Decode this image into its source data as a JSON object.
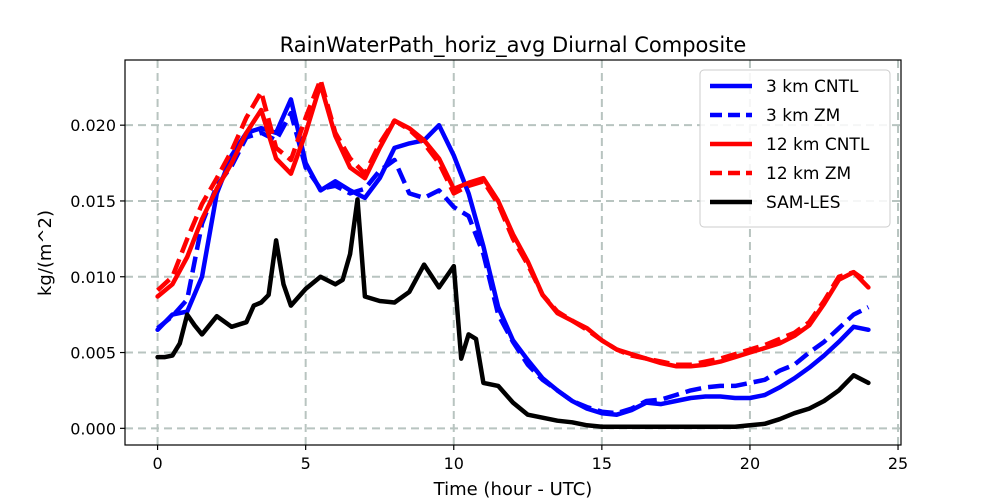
{
  "chart_data": {
    "type": "line",
    "title": "RainWaterPath_horiz_avg Diurnal Composite",
    "xlabel": "Time (hour - UTC)",
    "ylabel": "kg/(m^2)",
    "xlim": [
      -1.1,
      25.1
    ],
    "ylim": [
      -0.0011,
      0.0243
    ],
    "xticks": [
      0,
      5,
      10,
      15,
      20,
      25
    ],
    "xtick_labels": [
      "0",
      "5",
      "10",
      "15",
      "20",
      "25"
    ],
    "yticks": [
      0,
      0.005,
      0.01,
      0.015,
      0.02
    ],
    "ytick_labels": [
      "0.000",
      "0.005",
      "0.010",
      "0.015",
      "0.020"
    ],
    "grid": true,
    "legend_position": "top-right",
    "series": [
      {
        "name": "3 km CNTL",
        "color": "#0000ff",
        "style": "solid",
        "x": [
          0,
          0.5,
          1,
          1.5,
          2,
          2.5,
          3,
          3.5,
          4,
          4.5,
          5,
          5.5,
          6,
          6.5,
          7,
          7.5,
          8,
          8.5,
          9,
          9.5,
          10,
          10.5,
          11,
          11.5,
          12,
          12.5,
          13,
          13.5,
          14,
          14.5,
          15,
          15.5,
          16,
          16.5,
          17,
          17.5,
          18,
          18.5,
          19,
          19.5,
          20,
          20.5,
          21,
          21.5,
          22,
          22.5,
          23,
          23.5,
          24
        ],
        "y": [
          0.0065,
          0.0075,
          0.0077,
          0.01,
          0.0155,
          0.018,
          0.0195,
          0.0198,
          0.0195,
          0.0217,
          0.0175,
          0.0157,
          0.0163,
          0.0157,
          0.0152,
          0.0165,
          0.0185,
          0.0188,
          0.019,
          0.02,
          0.018,
          0.0155,
          0.012,
          0.008,
          0.0058,
          0.0045,
          0.0033,
          0.0025,
          0.0018,
          0.0013,
          0.001,
          0.0009,
          0.0012,
          0.0017,
          0.0016,
          0.0018,
          0.002,
          0.0021,
          0.0021,
          0.002,
          0.002,
          0.0022,
          0.0027,
          0.0033,
          0.004,
          0.0048,
          0.0057,
          0.0067,
          0.0065
        ]
      },
      {
        "name": "3 km ZM",
        "color": "#0000ff",
        "style": "dashed",
        "x": [
          0,
          0.5,
          1,
          1.5,
          2,
          2.5,
          3,
          3.5,
          4,
          4.5,
          5,
          5.5,
          6,
          6.5,
          7,
          7.5,
          8,
          8.5,
          9,
          9.5,
          10,
          10.5,
          11,
          11.5,
          12,
          12.5,
          13,
          13.5,
          14,
          14.5,
          15,
          15.5,
          16,
          16.5,
          17,
          17.5,
          18,
          18.5,
          19,
          19.5,
          20,
          20.5,
          21,
          21.5,
          22,
          22.5,
          23,
          23.5,
          24
        ],
        "y": [
          0.0066,
          0.0074,
          0.0085,
          0.0135,
          0.016,
          0.0173,
          0.0192,
          0.0195,
          0.019,
          0.0208,
          0.0172,
          0.0158,
          0.016,
          0.0155,
          0.0158,
          0.017,
          0.0177,
          0.0155,
          0.0152,
          0.0157,
          0.0146,
          0.014,
          0.0115,
          0.0075,
          0.0057,
          0.0042,
          0.0032,
          0.0025,
          0.0018,
          0.0014,
          0.0011,
          0.001,
          0.0013,
          0.0018,
          0.0019,
          0.0022,
          0.0025,
          0.0027,
          0.0028,
          0.0028,
          0.003,
          0.0032,
          0.0038,
          0.0042,
          0.005,
          0.0057,
          0.0066,
          0.0075,
          0.008
        ]
      },
      {
        "name": "12 km CNTL",
        "color": "#ff0000",
        "style": "solid",
        "x": [
          0,
          0.5,
          1,
          1.5,
          2,
          2.5,
          3,
          3.5,
          4,
          4.5,
          5,
          5.5,
          6,
          6.5,
          7,
          7.5,
          8,
          8.5,
          9,
          9.5,
          10,
          10.5,
          11,
          11.5,
          12,
          12.5,
          13,
          13.5,
          14,
          14.5,
          15,
          15.5,
          16,
          16.5,
          17,
          17.5,
          18,
          18.5,
          19,
          19.5,
          20,
          20.5,
          21,
          21.5,
          22,
          22.5,
          23,
          23.5,
          24
        ],
        "y": [
          0.0087,
          0.0095,
          0.0113,
          0.0138,
          0.0158,
          0.0175,
          0.0195,
          0.021,
          0.0178,
          0.0168,
          0.0195,
          0.0227,
          0.0193,
          0.0172,
          0.0165,
          0.0185,
          0.0203,
          0.0198,
          0.019,
          0.0178,
          0.0158,
          0.0162,
          0.0165,
          0.015,
          0.0128,
          0.011,
          0.0088,
          0.0076,
          0.0071,
          0.0066,
          0.0058,
          0.0052,
          0.0049,
          0.0046,
          0.0043,
          0.0041,
          0.0041,
          0.0042,
          0.0044,
          0.0047,
          0.005,
          0.0053,
          0.0056,
          0.0061,
          0.0068,
          0.0082,
          0.0098,
          0.0103,
          0.0093
        ]
      },
      {
        "name": "12 km ZM",
        "color": "#ff0000",
        "style": "dashed",
        "x": [
          0,
          0.5,
          1,
          1.5,
          2,
          2.5,
          3,
          3.5,
          4,
          4.5,
          5,
          5.5,
          6,
          6.5,
          7,
          7.5,
          8,
          8.5,
          9,
          9.5,
          10,
          10.5,
          11,
          11.5,
          12,
          12.5,
          13,
          13.5,
          14,
          14.5,
          15,
          15.5,
          16,
          16.5,
          17,
          17.5,
          18,
          18.5,
          19,
          19.5,
          20,
          20.5,
          21,
          21.5,
          22,
          22.5,
          23,
          23.5,
          24
        ],
        "y": [
          0.0091,
          0.01,
          0.0125,
          0.0148,
          0.0165,
          0.0183,
          0.0205,
          0.0222,
          0.0185,
          0.0177,
          0.0205,
          0.023,
          0.0195,
          0.0178,
          0.0168,
          0.0188,
          0.0203,
          0.0197,
          0.0188,
          0.0175,
          0.0155,
          0.016,
          0.0163,
          0.0148,
          0.0125,
          0.0108,
          0.0088,
          0.0077,
          0.0071,
          0.0065,
          0.0058,
          0.0052,
          0.0048,
          0.0046,
          0.0044,
          0.0042,
          0.0042,
          0.0044,
          0.0046,
          0.0049,
          0.0052,
          0.0055,
          0.0059,
          0.0063,
          0.007,
          0.0084,
          0.01,
          0.0103,
          0.0096
        ]
      },
      {
        "name": "SAM-LES",
        "color": "#000000",
        "style": "solid",
        "x": [
          0,
          0.25,
          0.5,
          0.75,
          1,
          1.25,
          1.5,
          2,
          2.5,
          3,
          3.25,
          3.5,
          3.75,
          4,
          4.25,
          4.5,
          5,
          5.5,
          6,
          6.25,
          6.5,
          6.75,
          7,
          7.5,
          8,
          8.5,
          9,
          9.5,
          10,
          10.25,
          10.5,
          10.75,
          11,
          11.5,
          12,
          12.5,
          13,
          13.5,
          14,
          14.5,
          15,
          15.5,
          16,
          16.5,
          17,
          17.5,
          18,
          18.5,
          19,
          19.5,
          20,
          20.5,
          21,
          21.5,
          22,
          22.5,
          23,
          23.5,
          24
        ],
        "y": [
          0.0047,
          0.0047,
          0.0048,
          0.0056,
          0.0075,
          0.0068,
          0.0062,
          0.0074,
          0.0067,
          0.007,
          0.0081,
          0.0083,
          0.0088,
          0.0124,
          0.0095,
          0.0081,
          0.0092,
          0.01,
          0.0095,
          0.0098,
          0.0115,
          0.0151,
          0.0087,
          0.0084,
          0.0083,
          0.009,
          0.0108,
          0.0093,
          0.0107,
          0.0046,
          0.0062,
          0.0059,
          0.003,
          0.0028,
          0.0017,
          0.0009,
          0.0007,
          0.0005,
          0.0004,
          0.0002,
          0.0001,
          0.0001,
          0.0001,
          0.0001,
          0.0001,
          0.0001,
          0.0001,
          0.0001,
          0.0001,
          0.0001,
          0.0002,
          0.0003,
          0.0006,
          0.001,
          0.0013,
          0.0018,
          0.0025,
          0.0035,
          0.003
        ]
      }
    ]
  }
}
